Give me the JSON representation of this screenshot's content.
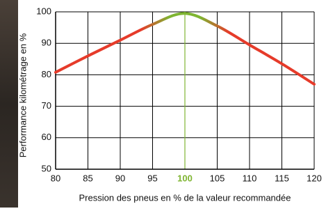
{
  "chart_data": {
    "type": "line",
    "x_label": "Pression des pneus en % de la valeur recommandée",
    "y_label": "Performance kilométrage en %",
    "x": [
      80,
      85,
      90,
      95,
      100,
      105,
      110,
      115,
      120
    ],
    "series": [
      {
        "values": [
          80.8,
          86,
          91,
          96,
          99.5,
          95.5,
          89.5,
          83.5,
          77
        ],
        "color": "#e63b2a"
      }
    ],
    "highlight_x": 100,
    "highlight_color": "#7fb532",
    "xlim": [
      80,
      120
    ],
    "xticks": [
      80,
      85,
      90,
      95,
      100,
      105,
      110,
      115,
      120
    ],
    "ylim": [
      50,
      100
    ],
    "yticks": [
      50,
      60,
      70,
      80,
      90,
      100
    ],
    "grid": true
  }
}
